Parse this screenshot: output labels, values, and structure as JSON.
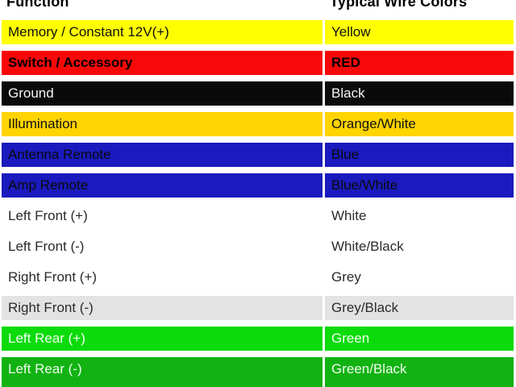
{
  "chart_data": {
    "type": "table",
    "columns": [
      "Function",
      "Typical Wire Colors"
    ],
    "rows": [
      {
        "function": "Memory / Constant 12V(+)",
        "wire_color": "Yellow",
        "row_bg": "#ffff00",
        "text_color": "#111111",
        "bold": false
      },
      {
        "function": "Switch / Accessory",
        "wire_color": "RED",
        "row_bg": "#f80808",
        "text_color": "#000000",
        "bold": true
      },
      {
        "function": "Ground",
        "wire_color": "Black",
        "row_bg": "#0a0a0a",
        "text_color": "#f5f5f5",
        "bold": false
      },
      {
        "function": "Illumination",
        "wire_color": "Orange/White",
        "row_bg": "#ffd400",
        "text_color": "#111111",
        "bold": false
      },
      {
        "function": "Antenna Remote",
        "wire_color": "Blue",
        "row_bg": "#1a1abe",
        "text_color": "#0a0a0a",
        "bold": false
      },
      {
        "function": "Amp Remote",
        "wire_color": "Blue/White",
        "row_bg": "#1a1abe",
        "text_color": "#0a0a0a",
        "bold": false
      },
      {
        "function": "Left Front (+)",
        "wire_color": "White",
        "row_bg": "#ffffff",
        "text_color": "#2a2a2a",
        "bold": false
      },
      {
        "function": "Left Front (-)",
        "wire_color": "White/Black",
        "row_bg": "#ffffff",
        "text_color": "#2a2a2a",
        "bold": false
      },
      {
        "function": "Right Front (+)",
        "wire_color": "Grey",
        "row_bg": "#ffffff",
        "text_color": "#2a2a2a",
        "bold": false
      },
      {
        "function": "Right Front (-)",
        "wire_color": "Grey/Black",
        "row_bg": "#e3e3e3",
        "text_color": "#2a2a2a",
        "bold": false
      },
      {
        "function": "Left Rear (+)",
        "wire_color": "Green",
        "row_bg": "#0bdb0b",
        "text_color": "#f2fff2",
        "bold": false
      },
      {
        "function": "Left Rear (-)",
        "wire_color": "Green/Black",
        "row_bg": "#12b212",
        "text_color": "#eefcee",
        "bold": false
      }
    ]
  }
}
